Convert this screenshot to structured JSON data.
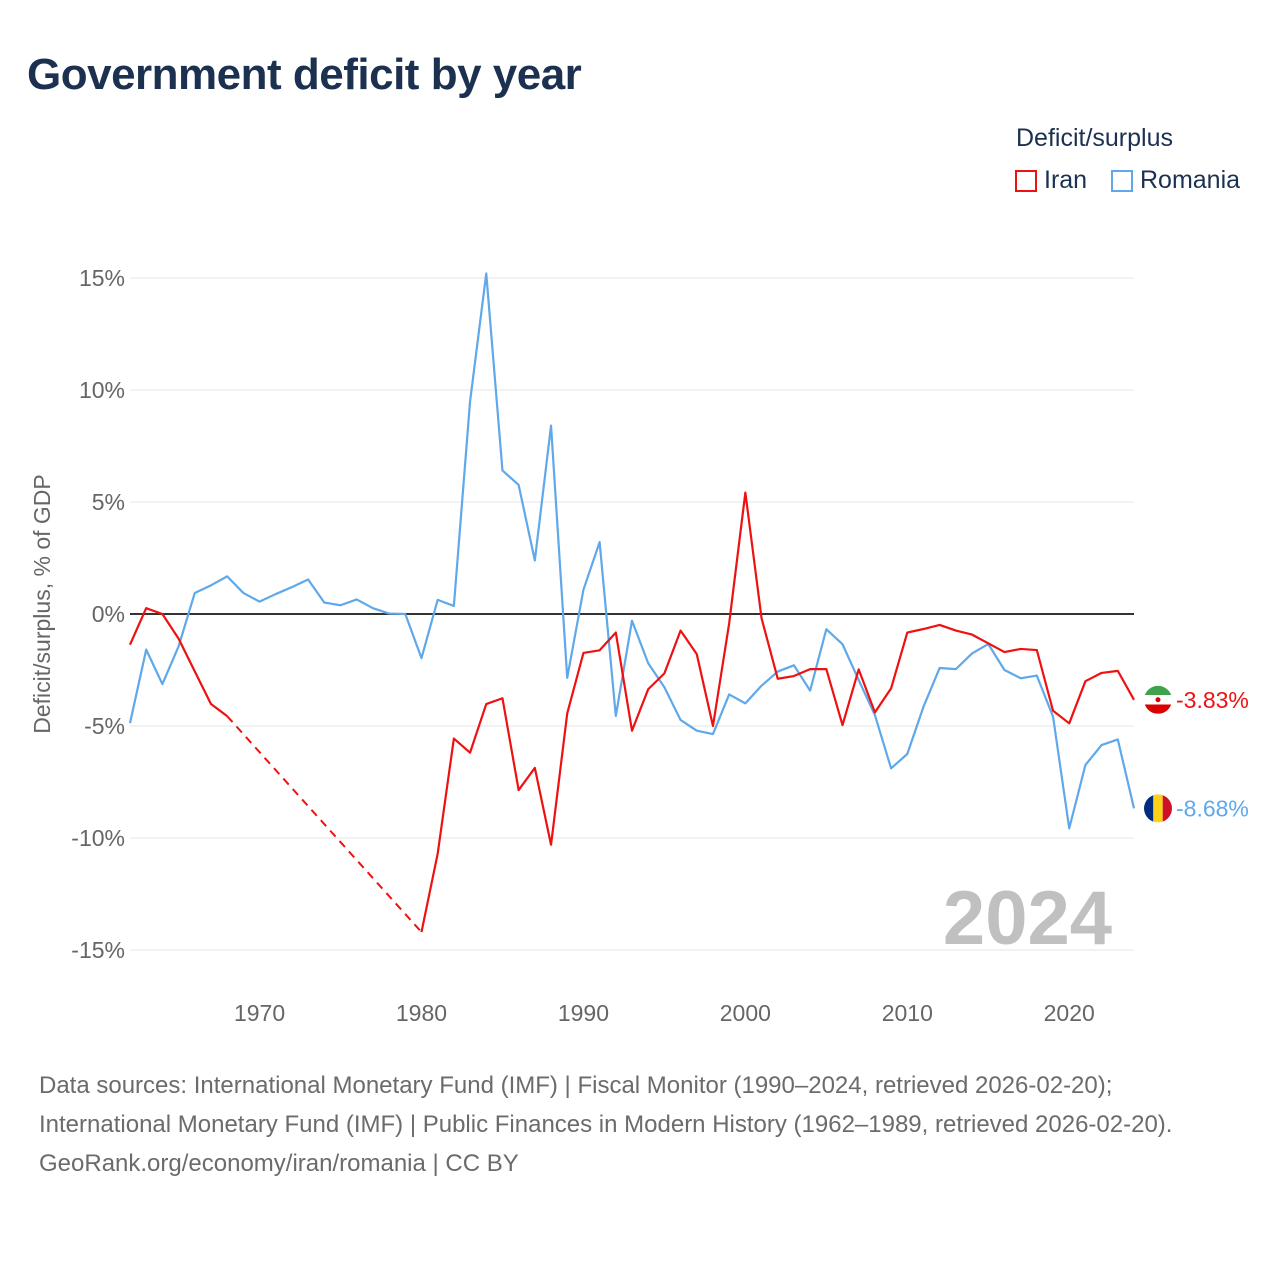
{
  "chart_data": {
    "type": "line",
    "title": "Government deficit by year",
    "ylabel": "Deficit/surplus, % of GDP",
    "xlabel": "",
    "ylim": [
      -15,
      15
    ],
    "xlim": [
      1962,
      2024
    ],
    "yticks": [
      "15%",
      "10%",
      "5%",
      "0%",
      "-5%",
      "-10%",
      "-15%"
    ],
    "ytick_values": [
      15,
      10,
      5,
      0,
      -5,
      -10,
      -15
    ],
    "xticks": [
      "1970",
      "1980",
      "1990",
      "2000",
      "2010",
      "2020"
    ],
    "xtick_values": [
      1970,
      1980,
      1990,
      2000,
      2010,
      2020
    ],
    "grid": true,
    "legend_title": "Deficit/surplus",
    "legend_position": "top-right",
    "year_label": "2024",
    "x_start": 1962,
    "series": [
      {
        "name": "Iran",
        "color": "#ee1111",
        "end_label": "-3.83%",
        "values": [
          -1.37,
          0.26,
          0,
          -1.1,
          -2.56,
          -4.02,
          -4.56,
          null,
          null,
          null,
          null,
          null,
          null,
          null,
          null,
          null,
          null,
          null,
          -14.2,
          -10.7,
          -5.56,
          -6.19,
          -4.02,
          -3.76,
          -7.86,
          -6.87,
          -10.3,
          -4.44,
          -1.74,
          -1.62,
          -0.83,
          -5.21,
          -3.36,
          -2.65,
          -0.74,
          -1.79,
          -5.0,
          -0.42,
          5.42,
          -0.19,
          -2.89,
          -2.77,
          -2.46,
          -2.46,
          -4.96,
          -2.47,
          -4.39,
          -3.32,
          -0.83,
          -0.67,
          -0.49,
          -0.74,
          -0.92,
          -1.31,
          -1.7,
          -1.56,
          -1.61,
          -4.32,
          -4.88,
          -3.0,
          -2.63,
          -2.54,
          -3.83
        ]
      },
      {
        "name": "Romania",
        "color": "#5fa8ea",
        "end_label": "-8.68%",
        "values": [
          -4.87,
          -1.59,
          -3.13,
          -1.45,
          0.94,
          1.28,
          1.68,
          0.94,
          0.55,
          0.89,
          1.2,
          1.54,
          0.51,
          0.39,
          0.65,
          0.26,
          0.02,
          0,
          -1.97,
          0.63,
          0.36,
          9.49,
          15.2,
          6.41,
          5.76,
          2.39,
          8.41,
          -2.85,
          1.08,
          3.21,
          -4.55,
          -0.3,
          -2.2,
          -3.27,
          -4.73,
          -5.21,
          -5.36,
          -3.59,
          -3.99,
          -3.2,
          -2.57,
          -2.29,
          -3.42,
          -0.68,
          -1.35,
          -2.95,
          -4.51,
          -6.89,
          -6.25,
          -4.14,
          -2.41,
          -2.46,
          -1.76,
          -1.34,
          -2.5,
          -2.87,
          -2.75,
          -4.58,
          -9.57,
          -6.74,
          -5.85,
          -5.6,
          -8.68
        ]
      }
    ]
  },
  "footer": {
    "sources": "Data sources: International Monetary Fund (IMF) | Fiscal Monitor (1990–2024, retrieved 2026-02-20); International Monetary Fund (IMF) | Public Finances in Modern History (1962–1989, retrieved 2026-02-20).",
    "credit": "GeoRank.org/economy/iran/romania | CC BY"
  }
}
